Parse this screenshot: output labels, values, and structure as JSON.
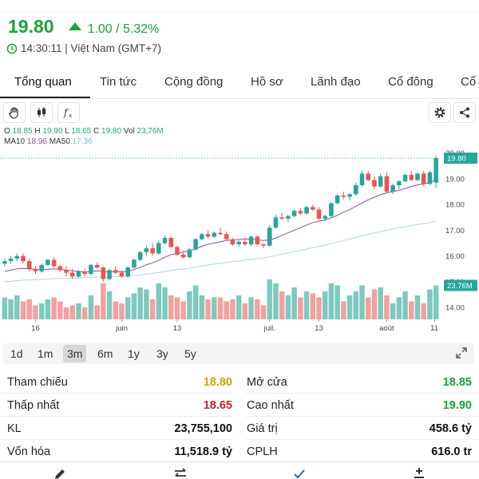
{
  "quote": {
    "price": "19.80",
    "change": "1.00 / 5.32%",
    "time": "14:30:11 | Việt Nam (GMT+7)"
  },
  "tabs": [
    "Tổng quan",
    "Tin tức",
    "Cộng đồng",
    "Hồ sơ",
    "Lãnh đạo",
    "Cổ đông",
    "Cổ t"
  ],
  "legend": {
    "o_label": "O",
    "o_value": "18.85",
    "h_label": "H",
    "h_value": "19.90",
    "l_label": "L",
    "l_value": "18.65",
    "c_label": "C",
    "c_value": "19.80",
    "vol_label": "Vol",
    "vol_value": "23,76M",
    "ma10_label": "MA10",
    "ma10_value": "18.96",
    "ma50_label": "MA50",
    "ma50_value": "17.36"
  },
  "price_badge": "19.80",
  "volume_badge": "23.76M",
  "ranges": [
    "1d",
    "1m",
    "3m",
    "6m",
    "1y",
    "3y",
    "5y"
  ],
  "active_range": "3m",
  "stats": [
    {
      "left_label": "Tham chiếu",
      "left_value": "18.80",
      "left_color": "#d4a106",
      "right_label": "Mở cửa",
      "right_value": "18.85",
      "right_color": "#1aa33a"
    },
    {
      "left_label": "Thấp nhất",
      "left_value": "18.65",
      "left_color": "#c0262d",
      "right_label": "Cao nhất",
      "right_value": "19.90",
      "right_color": "#1aa33a"
    },
    {
      "left_label": "KL",
      "left_value": "23,755,100",
      "left_color": "#111111",
      "right_label": "Giá trị",
      "right_value": "458.6 tỷ",
      "right_color": "#111111"
    },
    {
      "left_label": "Vốn hóa",
      "left_value": "11,518.9 tỷ",
      "left_color": "#111111",
      "right_label": "CPLH",
      "right_value": "616.0 tr",
      "right_color": "#111111"
    }
  ],
  "colors": {
    "up": "#1aa33a",
    "candle_up": "#26a69a",
    "candle_down": "#ef5350",
    "ma10": "#8a4e9b",
    "ma50": "#a9d4ef"
  },
  "chart_data": {
    "type": "candlestick",
    "y_ticks": [
      "20.00",
      "19.00",
      "18.00",
      "17.00",
      "16.00",
      "15.00",
      "14.00"
    ],
    "ylim": [
      13.6,
      20.3
    ],
    "x_labels": [
      "16",
      "juin",
      "13",
      "juil.",
      "13",
      "août",
      "11"
    ],
    "candles": [
      [
        15.7,
        15.9,
        15.6,
        15.8
      ],
      [
        15.8,
        16.0,
        15.7,
        15.9
      ],
      [
        15.9,
        16.1,
        15.8,
        16.0
      ],
      [
        16.0,
        16.1,
        15.7,
        15.8
      ],
      [
        15.8,
        15.9,
        15.4,
        15.5
      ],
      [
        15.5,
        15.6,
        15.3,
        15.4
      ],
      [
        15.4,
        15.7,
        15.35,
        15.65
      ],
      [
        15.65,
        15.9,
        15.6,
        15.85
      ],
      [
        15.85,
        15.95,
        15.55,
        15.6
      ],
      [
        15.6,
        15.65,
        15.4,
        15.45
      ],
      [
        15.45,
        15.6,
        15.2,
        15.35
      ],
      [
        15.35,
        15.5,
        15.1,
        15.2
      ],
      [
        15.2,
        15.45,
        15.15,
        15.4
      ],
      [
        15.4,
        15.5,
        15.2,
        15.3
      ],
      [
        15.3,
        15.7,
        15.25,
        15.65
      ],
      [
        15.65,
        15.75,
        15.5,
        15.55
      ],
      [
        15.55,
        15.6,
        15.0,
        15.1
      ],
      [
        15.1,
        15.5,
        15.05,
        15.45
      ],
      [
        15.45,
        15.6,
        15.3,
        15.35
      ],
      [
        15.35,
        15.45,
        15.15,
        15.2
      ],
      [
        15.2,
        15.6,
        15.15,
        15.55
      ],
      [
        15.55,
        15.9,
        15.5,
        15.85
      ],
      [
        15.85,
        16.2,
        15.8,
        16.15
      ],
      [
        16.15,
        16.4,
        16.0,
        16.3
      ],
      [
        16.3,
        16.5,
        16.0,
        16.1
      ],
      [
        16.1,
        16.6,
        16.05,
        16.5
      ],
      [
        16.5,
        16.8,
        16.45,
        16.7
      ],
      [
        16.7,
        16.75,
        16.3,
        16.35
      ],
      [
        16.35,
        16.4,
        16.0,
        16.05
      ],
      [
        16.05,
        16.2,
        15.9,
        15.95
      ],
      [
        15.95,
        16.3,
        15.9,
        16.25
      ],
      [
        16.25,
        16.7,
        16.2,
        16.65
      ],
      [
        16.65,
        16.9,
        16.6,
        16.85
      ],
      [
        16.85,
        17.0,
        16.7,
        16.75
      ],
      [
        16.75,
        16.95,
        16.7,
        16.9
      ],
      [
        16.9,
        17.1,
        16.8,
        16.85
      ],
      [
        16.85,
        16.95,
        16.6,
        16.65
      ],
      [
        16.65,
        16.7,
        16.4,
        16.45
      ],
      [
        16.45,
        16.6,
        16.35,
        16.55
      ],
      [
        16.55,
        16.7,
        16.4,
        16.45
      ],
      [
        16.45,
        16.8,
        16.4,
        16.75
      ],
      [
        16.75,
        16.8,
        16.4,
        16.45
      ],
      [
        16.45,
        16.5,
        16.3,
        16.4
      ],
      [
        16.4,
        17.2,
        16.35,
        17.1
      ],
      [
        17.1,
        17.6,
        17.05,
        17.5
      ],
      [
        17.5,
        17.7,
        17.4,
        17.45
      ],
      [
        17.45,
        17.6,
        17.3,
        17.55
      ],
      [
        17.55,
        17.8,
        17.5,
        17.75
      ],
      [
        17.75,
        17.85,
        17.6,
        17.65
      ],
      [
        17.65,
        17.95,
        17.6,
        17.9
      ],
      [
        17.9,
        18.0,
        17.75,
        17.8
      ],
      [
        17.8,
        17.9,
        17.4,
        17.45
      ],
      [
        17.45,
        17.6,
        17.35,
        17.55
      ],
      [
        17.55,
        18.1,
        17.5,
        18.05
      ],
      [
        18.05,
        18.4,
        18.0,
        18.35
      ],
      [
        18.35,
        18.5,
        18.2,
        18.3
      ],
      [
        18.3,
        18.45,
        18.15,
        18.4
      ],
      [
        18.4,
        18.85,
        18.35,
        18.75
      ],
      [
        18.75,
        19.3,
        18.7,
        19.2
      ],
      [
        19.2,
        19.3,
        18.9,
        18.95
      ],
      [
        18.95,
        19.1,
        18.6,
        18.7
      ],
      [
        18.7,
        19.2,
        18.65,
        19.1
      ],
      [
        19.1,
        19.25,
        18.45,
        18.5
      ],
      [
        18.5,
        18.8,
        18.4,
        18.75
      ],
      [
        18.75,
        18.95,
        18.6,
        18.9
      ],
      [
        18.9,
        19.2,
        18.85,
        19.15
      ],
      [
        19.15,
        19.3,
        18.9,
        18.95
      ],
      [
        18.95,
        19.25,
        18.9,
        19.2
      ],
      [
        19.2,
        19.3,
        18.7,
        18.8
      ],
      [
        18.8,
        19.3,
        18.75,
        19.25
      ],
      [
        18.85,
        19.9,
        18.65,
        19.8
      ]
    ],
    "volumes": [
      0.55,
      0.5,
      0.6,
      0.45,
      0.5,
      0.35,
      0.4,
      0.5,
      0.55,
      0.45,
      0.3,
      0.35,
      0.4,
      0.3,
      0.6,
      0.35,
      0.9,
      0.7,
      0.45,
      0.4,
      0.55,
      0.65,
      0.8,
      0.75,
      0.5,
      0.9,
      0.8,
      0.6,
      0.55,
      0.45,
      0.7,
      0.85,
      0.6,
      0.5,
      0.55,
      0.55,
      0.45,
      0.5,
      0.6,
      0.4,
      0.55,
      0.5,
      0.35,
      1.0,
      0.9,
      0.7,
      0.6,
      0.8,
      0.55,
      0.7,
      0.65,
      0.55,
      0.7,
      0.9,
      0.85,
      0.45,
      0.6,
      0.7,
      0.85,
      0.55,
      0.75,
      0.8,
      0.6,
      0.4,
      0.55,
      0.7,
      0.45,
      0.6,
      0.4,
      0.75,
      0.85
    ],
    "ma10": [
      15.4,
      15.45,
      15.5,
      15.52,
      15.5,
      15.48,
      15.46,
      15.48,
      15.5,
      15.49,
      15.45,
      15.42,
      15.4,
      15.38,
      15.4,
      15.42,
      15.38,
      15.38,
      15.4,
      15.38,
      15.4,
      15.47,
      15.56,
      15.66,
      15.73,
      15.83,
      15.95,
      16.05,
      16.1,
      16.15,
      16.2,
      16.28,
      16.38,
      16.45,
      16.5,
      16.55,
      16.6,
      16.62,
      16.64,
      16.66,
      16.65,
      16.63,
      16.6,
      16.62,
      16.7,
      16.8,
      16.9,
      17.0,
      17.1,
      17.2,
      17.3,
      17.35,
      17.4,
      17.48,
      17.58,
      17.7,
      17.8,
      17.93,
      18.06,
      18.18,
      18.28,
      18.38,
      18.45,
      18.5,
      18.55,
      18.62,
      18.7,
      18.76,
      18.8,
      18.85,
      18.96
    ],
    "ma50": [
      15.0,
      15.02,
      15.04,
      15.06,
      15.07,
      15.08,
      15.09,
      15.1,
      15.12,
      15.13,
      15.13,
      15.14,
      15.15,
      15.16,
      15.17,
      15.18,
      15.18,
      15.19,
      15.2,
      15.21,
      15.22,
      15.24,
      15.27,
      15.3,
      15.33,
      15.36,
      15.4,
      15.44,
      15.47,
      15.5,
      15.53,
      15.57,
      15.61,
      15.65,
      15.68,
      15.72,
      15.75,
      15.78,
      15.81,
      15.84,
      15.87,
      15.9,
      15.93,
      15.97,
      16.02,
      16.07,
      16.12,
      16.17,
      16.22,
      16.27,
      16.32,
      16.37,
      16.42,
      16.48,
      16.54,
      16.6,
      16.66,
      16.72,
      16.78,
      16.84,
      16.9,
      16.95,
      17.0,
      17.05,
      17.1,
      17.14,
      17.18,
      17.22,
      17.26,
      17.3,
      17.36
    ]
  }
}
